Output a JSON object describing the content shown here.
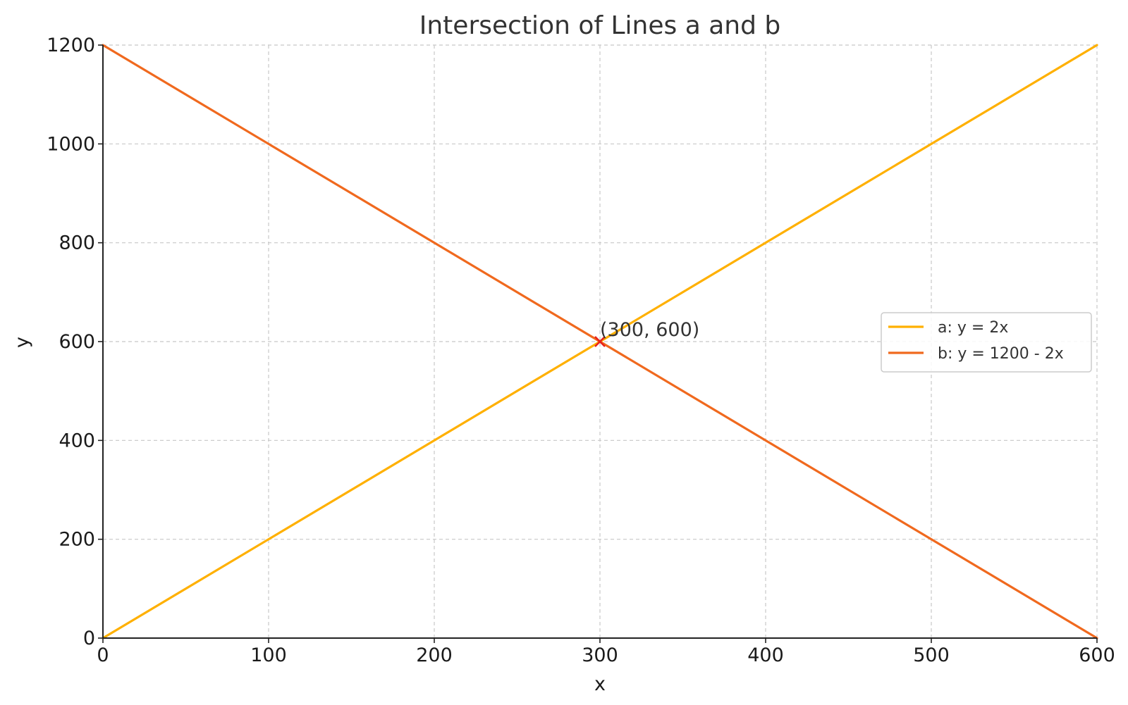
{
  "chart_data": {
    "type": "line",
    "title": "Intersection of Lines a and b",
    "xlabel": "x",
    "ylabel": "y",
    "xlim": [
      0,
      600
    ],
    "ylim": [
      0,
      1200
    ],
    "x_ticks": [
      0,
      100,
      200,
      300,
      400,
      500,
      600
    ],
    "y_ticks": [
      0,
      200,
      400,
      600,
      800,
      1000,
      1200
    ],
    "grid": true,
    "legend_position": "center-right",
    "series": [
      {
        "name": "a: y = 2x",
        "color": "#FFB000",
        "x": [
          0,
          600
        ],
        "y": [
          0,
          1200
        ]
      },
      {
        "name": "b: y = 1200 - 2x",
        "color": "#F0691E",
        "x": [
          0,
          600
        ],
        "y": [
          1200,
          0
        ]
      }
    ],
    "intersection": {
      "x": 300,
      "y": 600,
      "marker": "x",
      "color": "#E8201A",
      "label": "(300, 600)"
    }
  }
}
